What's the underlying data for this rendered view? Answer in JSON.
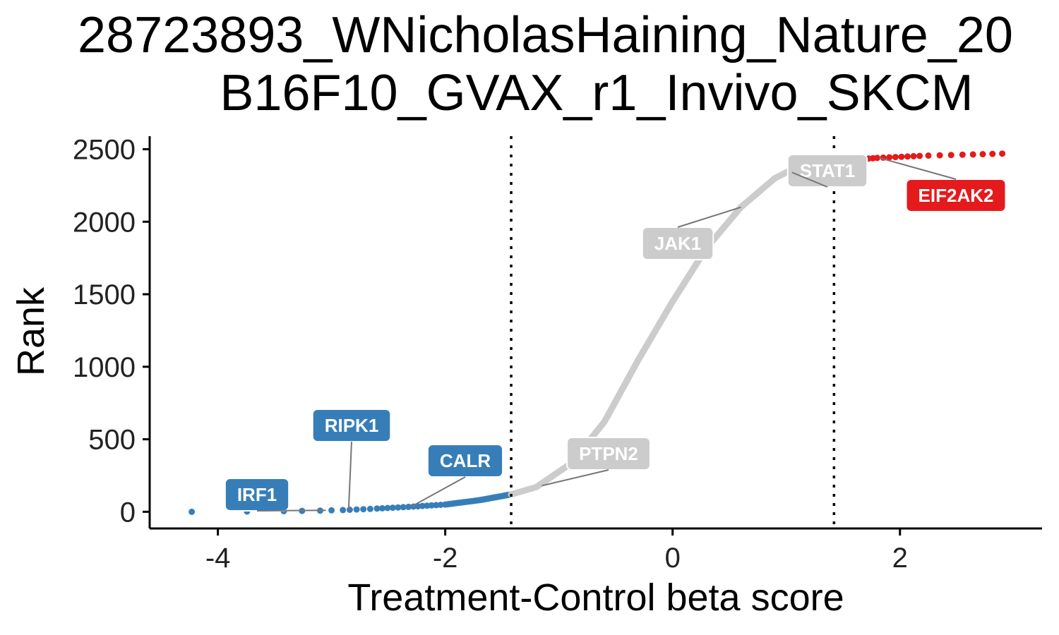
{
  "chart_data": {
    "type": "scatter",
    "title_lines": [
      "28723893_WNicholasHaining_Nature_20",
      "B16F10_GVAX_r1_Invivo_SKCM"
    ],
    "xlabel": "Treatment-Control beta score",
    "ylabel": "Rank",
    "xlim": [
      -4.6,
      3.25
    ],
    "ylim": [
      -115,
      2590
    ],
    "x_ticks": [
      -4,
      -2,
      0,
      2
    ],
    "x_tick_labels": [
      "-4",
      "-2",
      "0",
      "2"
    ],
    "y_ticks": [
      0,
      500,
      1000,
      1500,
      2000,
      2500
    ],
    "y_tick_labels": [
      "0",
      "500",
      "1000",
      "1500",
      "2000",
      "2500"
    ],
    "grid": false,
    "legend": "none",
    "cutoffs": [
      -1.42,
      1.42
    ],
    "total_genes": 2470,
    "series": [
      {
        "group": "down",
        "color": "#377EB8",
        "description_x_range": [
          -4.23,
          -1.42
        ],
        "rank_range": [
          0,
          120
        ]
      },
      {
        "group": "neutral",
        "color": "#CCCCCC",
        "description_x_range": [
          -1.42,
          1.42
        ],
        "rank_range": [
          120,
          2420
        ]
      },
      {
        "group": "up",
        "color": "#E41A1C",
        "description_x_range": [
          1.42,
          2.9
        ],
        "rank_range": [
          2420,
          2470
        ]
      }
    ],
    "curve_knots": {
      "x": [
        -4.23,
        -3.5,
        -3.1,
        -2.9,
        -2.6,
        -2.3,
        -2.0,
        -1.7,
        -1.42,
        -1.2,
        -0.9,
        -0.6,
        -0.3,
        0.0,
        0.3,
        0.6,
        0.9,
        1.1,
        1.3,
        1.42,
        1.8,
        2.2,
        2.6,
        2.9
      ],
      "rank": [
        0,
        3,
        8,
        12,
        22,
        35,
        50,
        80,
        120,
        170,
        330,
        620,
        1050,
        1450,
        1820,
        2100,
        2300,
        2380,
        2412,
        2420,
        2440,
        2455,
        2463,
        2470
      ]
    },
    "annotations": [
      {
        "label": "IRF1",
        "x": -3.05,
        "rank": 10,
        "color": "#377EB8"
      },
      {
        "label": "RIPK1",
        "x": -2.85,
        "rank": 12,
        "color": "#377EB8"
      },
      {
        "label": "CALR",
        "x": -2.3,
        "rank": 35,
        "color": "#377EB8"
      },
      {
        "label": "PTPN2",
        "x": -1.15,
        "rank": 180,
        "color": "#CCCCCC"
      },
      {
        "label": "JAK1",
        "x": 0.6,
        "rank": 2100,
        "color": "#CCCCCC"
      },
      {
        "label": "STAT1",
        "x": 1.05,
        "rank": 2340,
        "color": "#CCCCCC"
      },
      {
        "label": "EIF2AK2",
        "x": 1.82,
        "rank": 2440,
        "color": "#E41A1C"
      }
    ]
  }
}
